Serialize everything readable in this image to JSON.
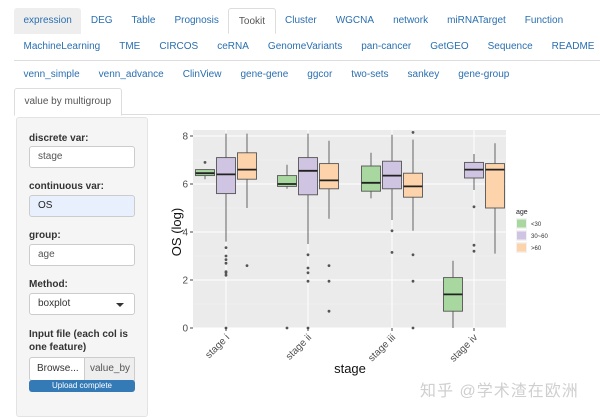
{
  "nav": {
    "row1": [
      "expression",
      "DEG",
      "Table",
      "Prognosis",
      "Tookit",
      "Cluster",
      "WGCNA",
      "network",
      "miRNATarget",
      "Function"
    ],
    "row2": [
      "MachineLearning",
      "TME",
      "CIRCOS",
      "ceRNA",
      "GenomeVariants",
      "pan-cancer",
      "GetGEO",
      "Sequence",
      "README"
    ],
    "row3": [
      "venn_simple",
      "venn_advance",
      "ClinView",
      "gene-gene",
      "ggcor",
      "two-sets",
      "sankey",
      "gene-group"
    ],
    "row4": [
      "value by multigroup"
    ],
    "active_row1": "Tookit"
  },
  "sidebar": {
    "discrete_label": "discrete var:",
    "discrete_value": "stage",
    "continuous_label": "continuous var:",
    "continuous_value": "OS",
    "group_label": "group:",
    "group_value": "age",
    "method_label": "Method:",
    "method_value": "boxplot",
    "file_label": "Input file (each col is one feature)",
    "browse_label": "Browse...",
    "file_name": "value_by",
    "upload_status": "Upload complete"
  },
  "watermark": "知乎 @学术渣在欧洲",
  "chart_data": {
    "type": "boxplot",
    "xlabel": "stage",
    "ylabel": "OS (log)",
    "categories": [
      "stage i",
      "stage ii",
      "stage iii",
      "stage iv"
    ],
    "ylim": [
      0,
      8.1
    ],
    "yticks": [
      0,
      2,
      4,
      6,
      8
    ],
    "grid": true,
    "legend_position": "right",
    "legend_title": "age",
    "series": [
      {
        "name": "<30",
        "color": "#a8d8a0",
        "boxes": [
          {
            "min": 6.2,
            "q1": 6.35,
            "median": 6.45,
            "q3": 6.6,
            "max": 6.6,
            "outliers": [
              6.9
            ]
          },
          {
            "min": 5.8,
            "q1": 5.9,
            "median": 6.0,
            "q3": 6.35,
            "max": 6.8,
            "outliers": [
              0
            ]
          },
          {
            "min": 5.4,
            "q1": 5.7,
            "median": 6.05,
            "q3": 6.75,
            "max": 7.3,
            "outliers": []
          },
          {
            "min": 0,
            "q1": 0.7,
            "median": 1.4,
            "q3": 2.1,
            "max": 2.8,
            "outliers": []
          }
        ]
      },
      {
        "name": "30~60",
        "color": "#cfc4e1",
        "boxes": [
          {
            "min": 3.6,
            "q1": 5.6,
            "median": 6.4,
            "q3": 7.1,
            "max": 8.1,
            "outliers": [
              3.35,
              3.0,
              2.85,
              2.7,
              2.35,
              2.3,
              2.2,
              0
            ]
          },
          {
            "min": 3.5,
            "q1": 5.55,
            "median": 6.55,
            "q3": 7.1,
            "max": 8.1,
            "outliers": [
              3.05,
              2.5,
              2.3,
              1.95,
              0
            ]
          },
          {
            "min": 4.5,
            "q1": 5.8,
            "median": 6.35,
            "q3": 6.95,
            "max": 8.05,
            "outliers": [
              4.05,
              3.15
            ]
          },
          {
            "min": 5.75,
            "q1": 6.25,
            "median": 6.6,
            "q3": 6.9,
            "max": 7.25,
            "outliers": [
              5.05,
              3.45,
              3.2
            ]
          }
        ]
      },
      {
        "name": ">60",
        "color": "#fcd3aa",
        "boxes": [
          {
            "min": 5.0,
            "q1": 6.2,
            "median": 6.6,
            "q3": 7.3,
            "max": 8.1,
            "outliers": [
              2.6
            ]
          },
          {
            "min": 4.55,
            "q1": 5.8,
            "median": 6.15,
            "q3": 6.85,
            "max": 7.8,
            "outliers": [
              2.6,
              1.95,
              0.7
            ]
          },
          {
            "min": 4.05,
            "q1": 5.45,
            "median": 5.9,
            "q3": 6.45,
            "max": 7.85,
            "outliers": [
              8.15,
              3.05,
              1.95,
              0
            ]
          },
          {
            "min": 3.1,
            "q1": 5.0,
            "median": 6.6,
            "q3": 6.85,
            "max": 7.7,
            "outliers": []
          }
        ]
      }
    ]
  }
}
